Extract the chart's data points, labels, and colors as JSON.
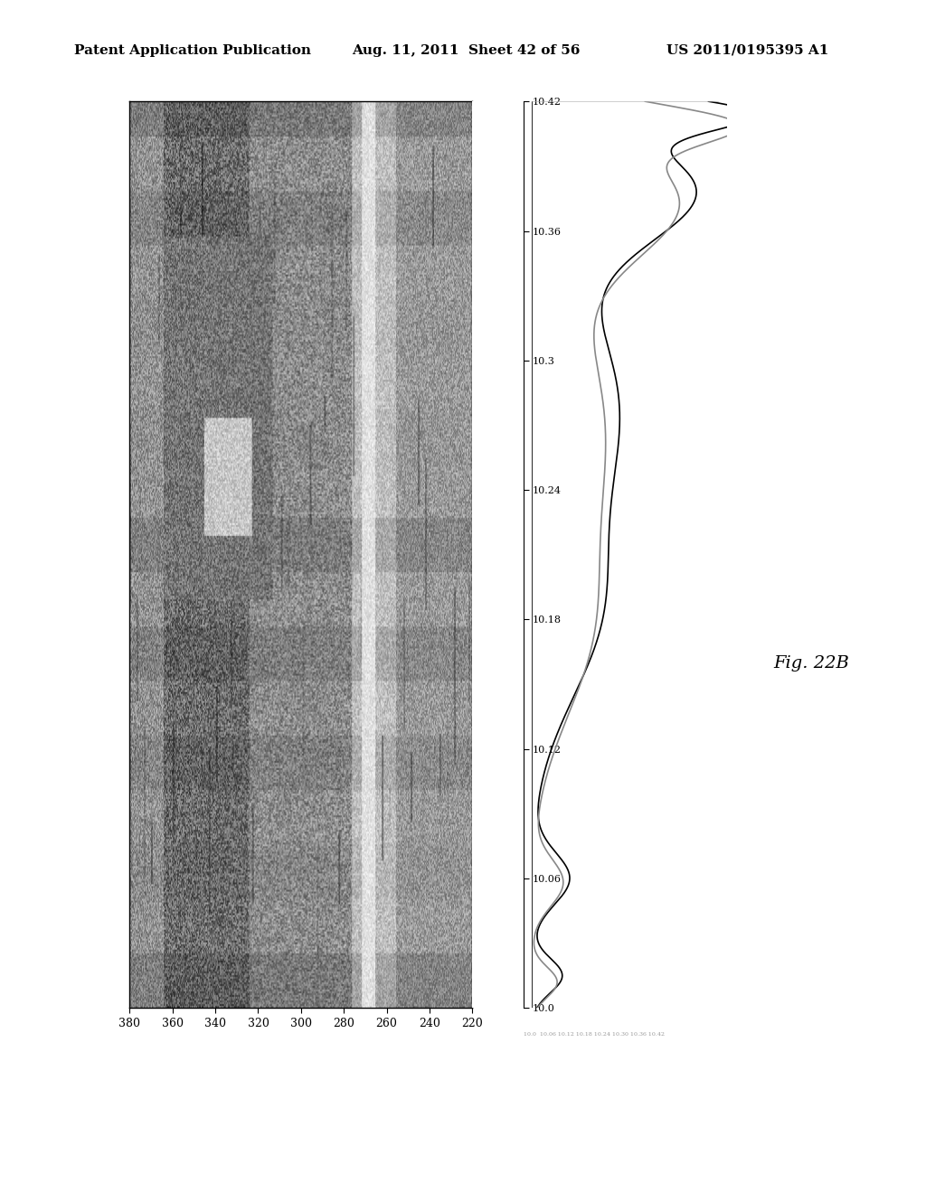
{
  "header_left": "Patent Application Publication",
  "header_middle": "Aug. 11, 2011  Sheet 42 of 56",
  "header_right": "US 2011/0195395 A1",
  "fig_label": "Fig. 22B",
  "background_color": "#ffffff",
  "header_fontsize": 11,
  "fig_label_fontsize": 14,
  "top_axis_ticks": [
    10.0,
    10.06,
    10.12,
    10.18,
    10.24,
    10.3,
    10.36,
    10.42
  ],
  "bottom_axis_ticks": [
    380,
    360,
    340,
    320,
    300,
    280,
    260,
    240,
    220
  ],
  "curve_color1": "#000000",
  "curve_color2": "#888888",
  "curve_linewidth": 1.2
}
